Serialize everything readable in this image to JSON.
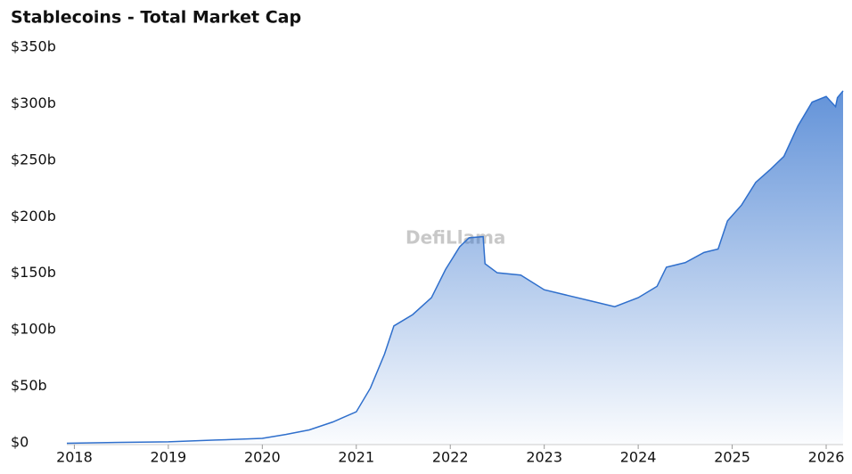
{
  "chart_data": {
    "type": "area",
    "title": "Stablecoins - Total Market Cap",
    "watermark": "DefiLlama",
    "x": [
      2017.92,
      2018.5,
      2019.0,
      2019.5,
      2020.0,
      2020.25,
      2020.5,
      2020.75,
      2021.0,
      2021.15,
      2021.3,
      2021.4,
      2021.6,
      2021.8,
      2021.95,
      2022.1,
      2022.2,
      2022.35,
      2022.37,
      2022.5,
      2022.75,
      2023.0,
      2023.25,
      2023.5,
      2023.75,
      2024.0,
      2024.2,
      2024.3,
      2024.5,
      2024.7,
      2024.85,
      2024.95,
      2025.1,
      2025.25,
      2025.4,
      2025.55,
      2025.7,
      2025.85,
      2026.0,
      2026.1,
      2026.12,
      2026.18
    ],
    "series": [
      {
        "name": "Total Market Cap",
        "color": "#2f6fcc",
        "values": [
          1.2,
          2,
          2.5,
          4,
          5.5,
          9,
          13,
          20,
          29,
          50,
          80,
          105,
          115,
          130,
          155,
          175,
          183,
          184,
          160,
          152,
          150,
          137,
          132,
          127,
          122,
          130,
          140,
          157,
          161,
          170,
          173,
          198,
          212,
          232,
          243,
          255,
          282,
          303,
          308,
          299,
          307,
          313
        ]
      }
    ],
    "xlim": [
      2017.92,
      2026.18
    ],
    "xticks": [
      2018,
      2019,
      2020,
      2021,
      2022,
      2023,
      2024,
      2025,
      2026
    ],
    "ylim": [
      0,
      350
    ],
    "yticks": [
      {
        "value": 0,
        "label": "$0"
      },
      {
        "value": 50,
        "label": "$50b"
      },
      {
        "value": 100,
        "label": "$100b"
      },
      {
        "value": 150,
        "label": "$150b"
      },
      {
        "value": 200,
        "label": "$200b"
      },
      {
        "value": 250,
        "label": "$250b"
      },
      {
        "value": 300,
        "label": "$300b"
      },
      {
        "value": 350,
        "label": "$350b"
      }
    ]
  }
}
